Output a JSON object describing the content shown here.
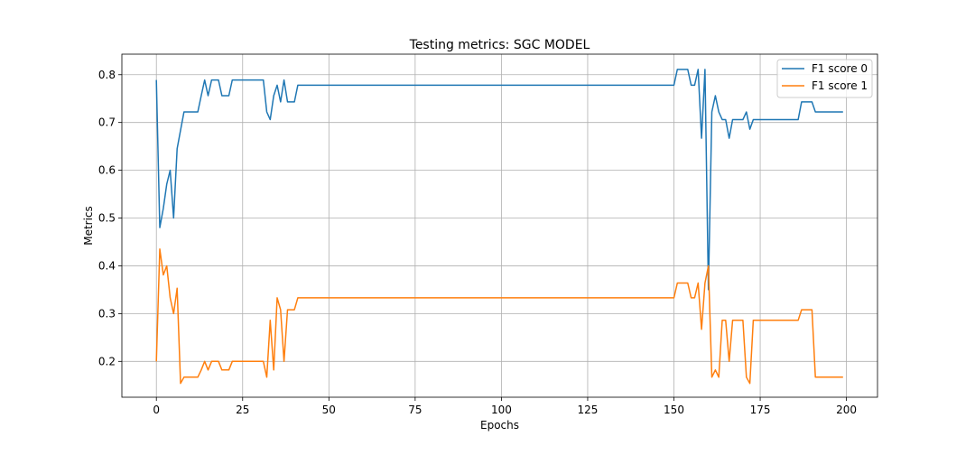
{
  "chart_data": {
    "type": "line",
    "title": "Testing metrics: SGC MODEL",
    "xlabel": "Epochs",
    "ylabel": "Metrics",
    "xlim": [
      -10,
      209
    ],
    "ylim": [
      0.125,
      0.843
    ],
    "xticks": [
      0,
      25,
      50,
      75,
      100,
      125,
      150,
      175,
      200
    ],
    "yticks": [
      0.2,
      0.3,
      0.4,
      0.5,
      0.6,
      0.7,
      0.8
    ],
    "grid": true,
    "legend_position": "top-right",
    "series": [
      {
        "name": "F1 score 0",
        "color": "#1f77b4",
        "points": [
          [
            0,
            0.789
          ],
          [
            1,
            0.48
          ],
          [
            2,
            0.52
          ],
          [
            3,
            0.571
          ],
          [
            4,
            0.6
          ],
          [
            5,
            0.5
          ],
          [
            6,
            0.645
          ],
          [
            7,
            0.684
          ],
          [
            8,
            0.722
          ],
          [
            9,
            0.722
          ],
          [
            10,
            0.722
          ],
          [
            11,
            0.722
          ],
          [
            12,
            0.722
          ],
          [
            13,
            0.756
          ],
          [
            14,
            0.789
          ],
          [
            15,
            0.756
          ],
          [
            16,
            0.789
          ],
          [
            17,
            0.789
          ],
          [
            18,
            0.789
          ],
          [
            19,
            0.756
          ],
          [
            20,
            0.756
          ],
          [
            21,
            0.756
          ],
          [
            22,
            0.789
          ],
          [
            23,
            0.789
          ],
          [
            31,
            0.789
          ],
          [
            32,
            0.722
          ],
          [
            33,
            0.706
          ],
          [
            34,
            0.756
          ],
          [
            35,
            0.778
          ],
          [
            36,
            0.743
          ],
          [
            37,
            0.789
          ],
          [
            38,
            0.743
          ],
          [
            39,
            0.743
          ],
          [
            40,
            0.743
          ],
          [
            41,
            0.778
          ],
          [
            150,
            0.778
          ],
          [
            151,
            0.811
          ],
          [
            152,
            0.811
          ],
          [
            154,
            0.811
          ],
          [
            155,
            0.778
          ],
          [
            156,
            0.778
          ],
          [
            157,
            0.811
          ],
          [
            158,
            0.667
          ],
          [
            159,
            0.811
          ],
          [
            160,
            0.35
          ],
          [
            161,
            0.722
          ],
          [
            162,
            0.756
          ],
          [
            163,
            0.722
          ],
          [
            164,
            0.706
          ],
          [
            165,
            0.706
          ],
          [
            166,
            0.667
          ],
          [
            167,
            0.706
          ],
          [
            168,
            0.706
          ],
          [
            170,
            0.706
          ],
          [
            171,
            0.722
          ],
          [
            172,
            0.686
          ],
          [
            173,
            0.706
          ],
          [
            186,
            0.706
          ],
          [
            187,
            0.743
          ],
          [
            190,
            0.743
          ],
          [
            191,
            0.722
          ],
          [
            199,
            0.722
          ]
        ]
      },
      {
        "name": "F1 score 1",
        "color": "#ff7f0e",
        "points": [
          [
            0,
            0.2
          ],
          [
            1,
            0.435
          ],
          [
            2,
            0.381
          ],
          [
            3,
            0.4
          ],
          [
            4,
            0.333
          ],
          [
            5,
            0.3
          ],
          [
            6,
            0.353
          ],
          [
            7,
            0.154
          ],
          [
            8,
            0.167
          ],
          [
            12,
            0.167
          ],
          [
            13,
            0.182
          ],
          [
            14,
            0.2
          ],
          [
            15,
            0.182
          ],
          [
            16,
            0.2
          ],
          [
            17,
            0.2
          ],
          [
            18,
            0.2
          ],
          [
            19,
            0.182
          ],
          [
            20,
            0.182
          ],
          [
            21,
            0.182
          ],
          [
            22,
            0.2
          ],
          [
            31,
            0.2
          ],
          [
            32,
            0.167
          ],
          [
            33,
            0.286
          ],
          [
            34,
            0.182
          ],
          [
            35,
            0.333
          ],
          [
            36,
            0.308
          ],
          [
            37,
            0.2
          ],
          [
            38,
            0.308
          ],
          [
            40,
            0.308
          ],
          [
            41,
            0.333
          ],
          [
            150,
            0.333
          ],
          [
            151,
            0.364
          ],
          [
            154,
            0.364
          ],
          [
            155,
            0.333
          ],
          [
            156,
            0.333
          ],
          [
            157,
            0.364
          ],
          [
            158,
            0.267
          ],
          [
            159,
            0.364
          ],
          [
            160,
            0.4
          ],
          [
            161,
            0.167
          ],
          [
            162,
            0.182
          ],
          [
            163,
            0.167
          ],
          [
            164,
            0.286
          ],
          [
            165,
            0.286
          ],
          [
            166,
            0.2
          ],
          [
            167,
            0.286
          ],
          [
            170,
            0.286
          ],
          [
            171,
            0.167
          ],
          [
            172,
            0.154
          ],
          [
            173,
            0.286
          ],
          [
            186,
            0.286
          ],
          [
            187,
            0.308
          ],
          [
            190,
            0.308
          ],
          [
            191,
            0.167
          ],
          [
            199,
            0.167
          ]
        ]
      }
    ]
  }
}
